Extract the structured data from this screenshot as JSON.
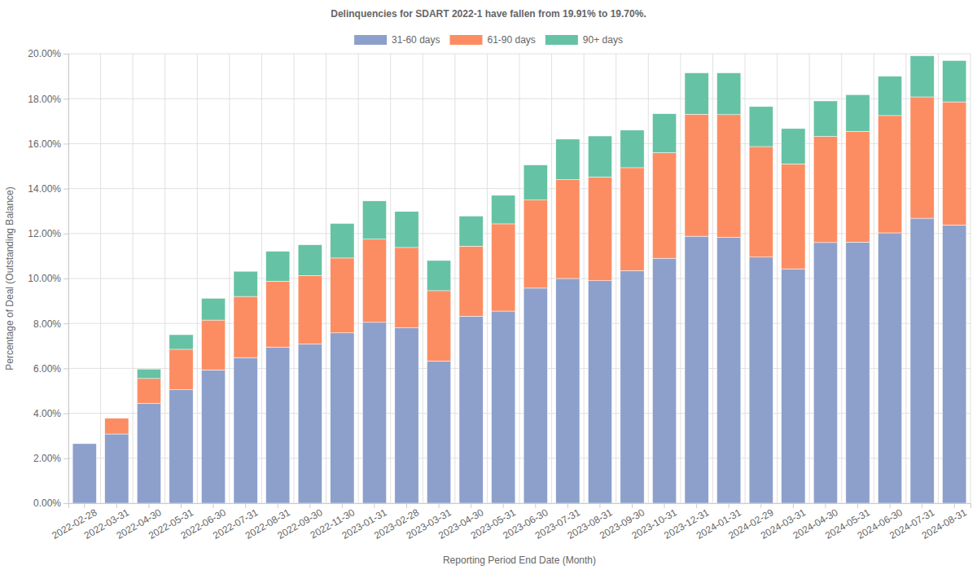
{
  "chart_data": {
    "type": "bar",
    "stacked": true,
    "grid": true,
    "legend": "top",
    "title": "Delinquencies for SDART 2022-1 have fallen from 19.91% to 19.70%.",
    "x_label": "Reporting Period End Date (Month)",
    "y_label": "Percentage of Deal (Outstanding Balance)",
    "categories": [
      "2022-02-28",
      "2022-03-31",
      "2022-04-30",
      "2022-05-31",
      "2022-06-30",
      "2022-07-31",
      "2022-08-31",
      "2022-09-30",
      "2022-11-30",
      "2023-01-31",
      "2023-02-28",
      "2023-03-31",
      "2023-04-30",
      "2023-05-31",
      "2023-06-30",
      "2023-07-31",
      "2023-08-31",
      "2023-09-30",
      "2023-10-31",
      "2023-12-31",
      "2024-01-31",
      "2024-02-29",
      "2024-03-31",
      "2024-04-30",
      "2024-05-31",
      "2024-06-30",
      "2024-07-31",
      "2024-08-31"
    ],
    "series": [
      {
        "name": "31-60 days",
        "color": "#8da0cb",
        "values": [
          2.65,
          3.08,
          4.45,
          5.05,
          5.93,
          6.48,
          6.95,
          7.08,
          7.58,
          8.05,
          7.8,
          6.33,
          8.32,
          8.55,
          9.57,
          10.0,
          9.9,
          10.35,
          10.9,
          11.88,
          11.83,
          10.95,
          10.43,
          11.6,
          11.62,
          12.03,
          12.68,
          12.38
        ]
      },
      {
        "name": "61-90 days",
        "color": "#fc8d62",
        "values": [
          0,
          0.7,
          1.1,
          1.8,
          2.22,
          2.72,
          2.93,
          3.05,
          3.33,
          3.7,
          3.58,
          3.13,
          3.12,
          3.88,
          3.92,
          4.4,
          4.62,
          4.58,
          4.7,
          5.43,
          5.46,
          4.92,
          4.67,
          4.72,
          4.93,
          5.22,
          5.4,
          5.48
        ]
      },
      {
        "name": "90+ days",
        "color": "#66c2a5",
        "values": [
          0,
          0,
          0.42,
          0.65,
          0.97,
          1.12,
          1.33,
          1.37,
          1.54,
          1.7,
          1.6,
          1.34,
          1.34,
          1.27,
          1.56,
          1.8,
          1.82,
          1.67,
          1.73,
          1.84,
          1.86,
          1.78,
          1.57,
          1.58,
          1.63,
          1.75,
          1.83,
          1.84
        ]
      }
    ],
    "ylim": [
      0,
      20
    ],
    "yticks": [
      {
        "value": 0,
        "label": "0.00%"
      },
      {
        "value": 2,
        "label": "2.00%"
      },
      {
        "value": 4,
        "label": "4.00%"
      },
      {
        "value": 6,
        "label": "6.00%"
      },
      {
        "value": 8,
        "label": "8.00%"
      },
      {
        "value": 10,
        "label": "10.00%"
      },
      {
        "value": 12,
        "label": "12.00%"
      },
      {
        "value": 14,
        "label": "14.00%"
      },
      {
        "value": 16,
        "label": "16.00%"
      },
      {
        "value": 18,
        "label": "18.00%"
      },
      {
        "value": 20,
        "label": "20.00%"
      }
    ]
  }
}
